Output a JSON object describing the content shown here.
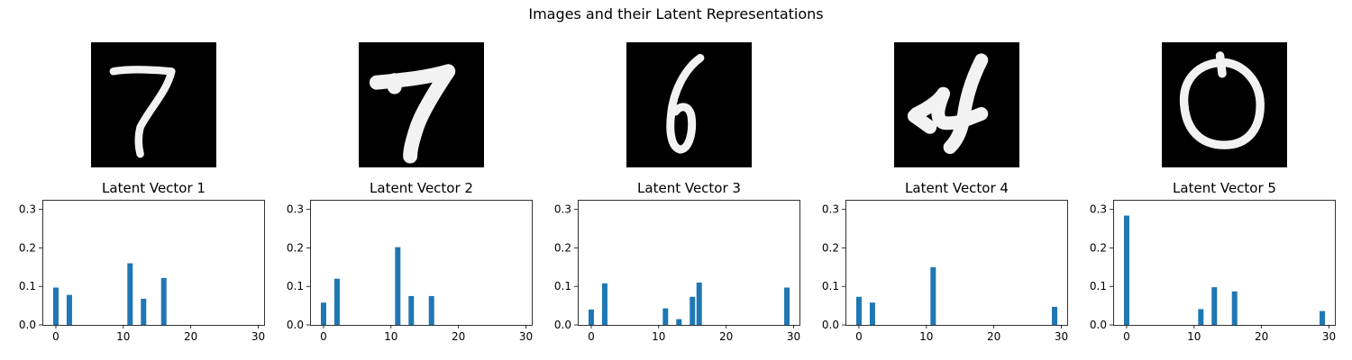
{
  "suptitle": "Images and their Latent Representations",
  "colors": {
    "bar": "#1f77b4",
    "image_bg": "#000000",
    "stroke": "#f2f2f2"
  },
  "chart_data": [
    {
      "type": "bar",
      "title": "Latent Vector 1",
      "image_digit": "7",
      "image_icon": "handwritten-digit-7-thin",
      "x": [
        0,
        2,
        11,
        13,
        16
      ],
      "values": [
        0.097,
        0.078,
        0.16,
        0.068,
        0.122
      ],
      "xlim": [
        -2,
        31
      ],
      "ylim": [
        0,
        0.325
      ],
      "xticks": [
        0,
        10,
        20,
        30
      ],
      "yticks": [
        0.0,
        0.1,
        0.2,
        0.3
      ],
      "ytick_labels": [
        "0.0",
        "0.1",
        "0.2",
        "0.3"
      ]
    },
    {
      "type": "bar",
      "title": "Latent Vector 2",
      "image_digit": "7",
      "image_icon": "handwritten-digit-7-bold",
      "x": [
        0,
        2,
        11,
        13,
        16
      ],
      "values": [
        0.058,
        0.12,
        0.202,
        0.075,
        0.075
      ],
      "xlim": [
        -2,
        31
      ],
      "ylim": [
        0,
        0.325
      ],
      "xticks": [
        0,
        10,
        20,
        30
      ],
      "yticks": [
        0.0,
        0.1,
        0.2,
        0.3
      ],
      "ytick_labels": [
        "0.0",
        "0.1",
        "0.2",
        "0.3"
      ]
    },
    {
      "type": "bar",
      "title": "Latent Vector 3",
      "image_digit": "6",
      "image_icon": "handwritten-digit-6",
      "x": [
        0,
        2,
        11,
        13,
        15,
        16,
        29
      ],
      "values": [
        0.04,
        0.108,
        0.043,
        0.015,
        0.073,
        0.11,
        0.097
      ],
      "xlim": [
        -2,
        31
      ],
      "ylim": [
        0,
        0.325
      ],
      "xticks": [
        0,
        10,
        20,
        30
      ],
      "yticks": [
        0.0,
        0.1,
        0.2,
        0.3
      ],
      "ytick_labels": [
        "0.0",
        "0.1",
        "0.2",
        "0.3"
      ]
    },
    {
      "type": "bar",
      "title": "Latent Vector 4",
      "image_digit": "4",
      "image_icon": "handwritten-digit-4",
      "x": [
        0,
        2,
        11,
        29
      ],
      "values": [
        0.073,
        0.058,
        0.15,
        0.047
      ],
      "xlim": [
        -2,
        31
      ],
      "ylim": [
        0,
        0.325
      ],
      "xticks": [
        0,
        10,
        20,
        30
      ],
      "yticks": [
        0.0,
        0.1,
        0.2,
        0.3
      ],
      "ytick_labels": [
        "0.0",
        "0.1",
        "0.2",
        "0.3"
      ]
    },
    {
      "type": "bar",
      "title": "Latent Vector 5",
      "image_digit": "0",
      "image_icon": "handwritten-digit-0",
      "x": [
        0,
        11,
        13,
        16,
        29
      ],
      "values": [
        0.284,
        0.041,
        0.098,
        0.087,
        0.036
      ],
      "xlim": [
        -2,
        31
      ],
      "ylim": [
        0,
        0.325
      ],
      "xticks": [
        0,
        10,
        20,
        30
      ],
      "yticks": [
        0.0,
        0.1,
        0.2,
        0.3
      ],
      "ytick_labels": [
        "0.0",
        "0.1",
        "0.2",
        "0.3"
      ]
    }
  ]
}
